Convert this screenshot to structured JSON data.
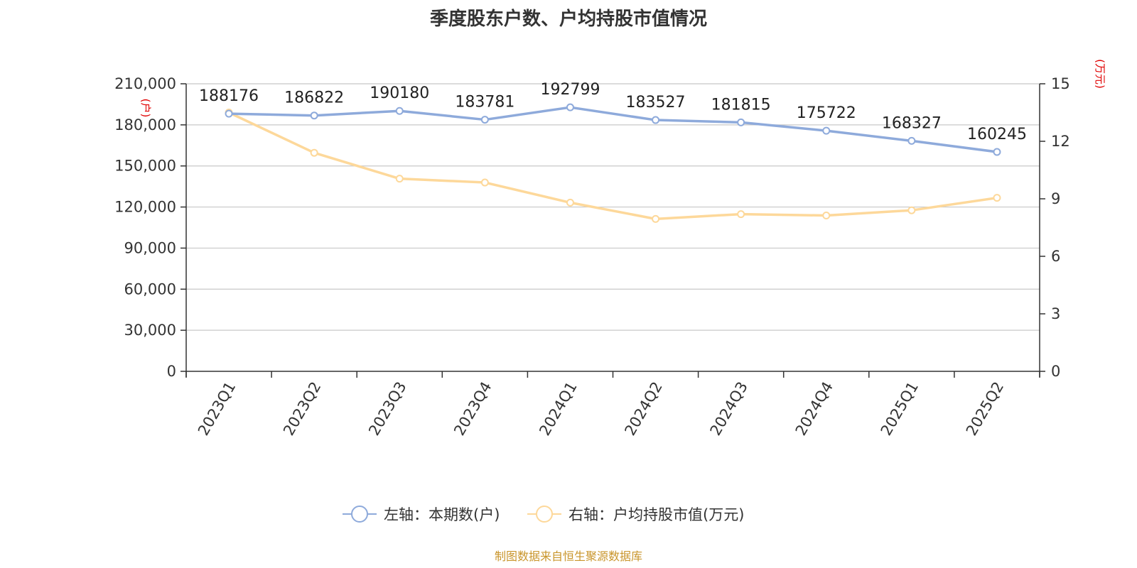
{
  "chart_data": {
    "type": "line",
    "title": "季度股东户数、户均持股市值情况",
    "categories": [
      "2023Q1",
      "2023Q2",
      "2023Q3",
      "2023Q4",
      "2024Q1",
      "2024Q2",
      "2024Q3",
      "2024Q4",
      "2025Q1",
      "2025Q2"
    ],
    "series": [
      {
        "name": "左轴：本期数(户)",
        "axis": "left",
        "color": "#8eaadb",
        "values": [
          188176,
          186822,
          190180,
          183781,
          192799,
          183527,
          181815,
          175722,
          168327,
          160245
        ],
        "show_labels": true
      },
      {
        "name": "右轴：户均持股市值(万元)",
        "axis": "right",
        "color": "#fdd89a",
        "values": [
          13.5,
          11.4,
          10.05,
          9.85,
          8.8,
          7.95,
          8.2,
          8.13,
          8.4,
          9.05
        ],
        "show_labels": false
      }
    ],
    "left_axis": {
      "unit": "(户)",
      "min": 0,
      "max": 210000,
      "ticks": [
        0,
        30000,
        60000,
        90000,
        120000,
        150000,
        180000,
        210000
      ],
      "tick_labels": [
        "0",
        "30,000",
        "60,000",
        "90,000",
        "120,000",
        "150,000",
        "180,000",
        "210,000"
      ]
    },
    "right_axis": {
      "unit": "(万元)",
      "min": 0,
      "max": 15,
      "ticks": [
        0,
        3,
        6,
        9,
        12,
        15
      ],
      "tick_labels": [
        "0",
        "3",
        "6",
        "9",
        "12",
        "15"
      ]
    },
    "grid": true,
    "legend_position": "bottom",
    "source": "制图数据来自恒生聚源数据库"
  }
}
